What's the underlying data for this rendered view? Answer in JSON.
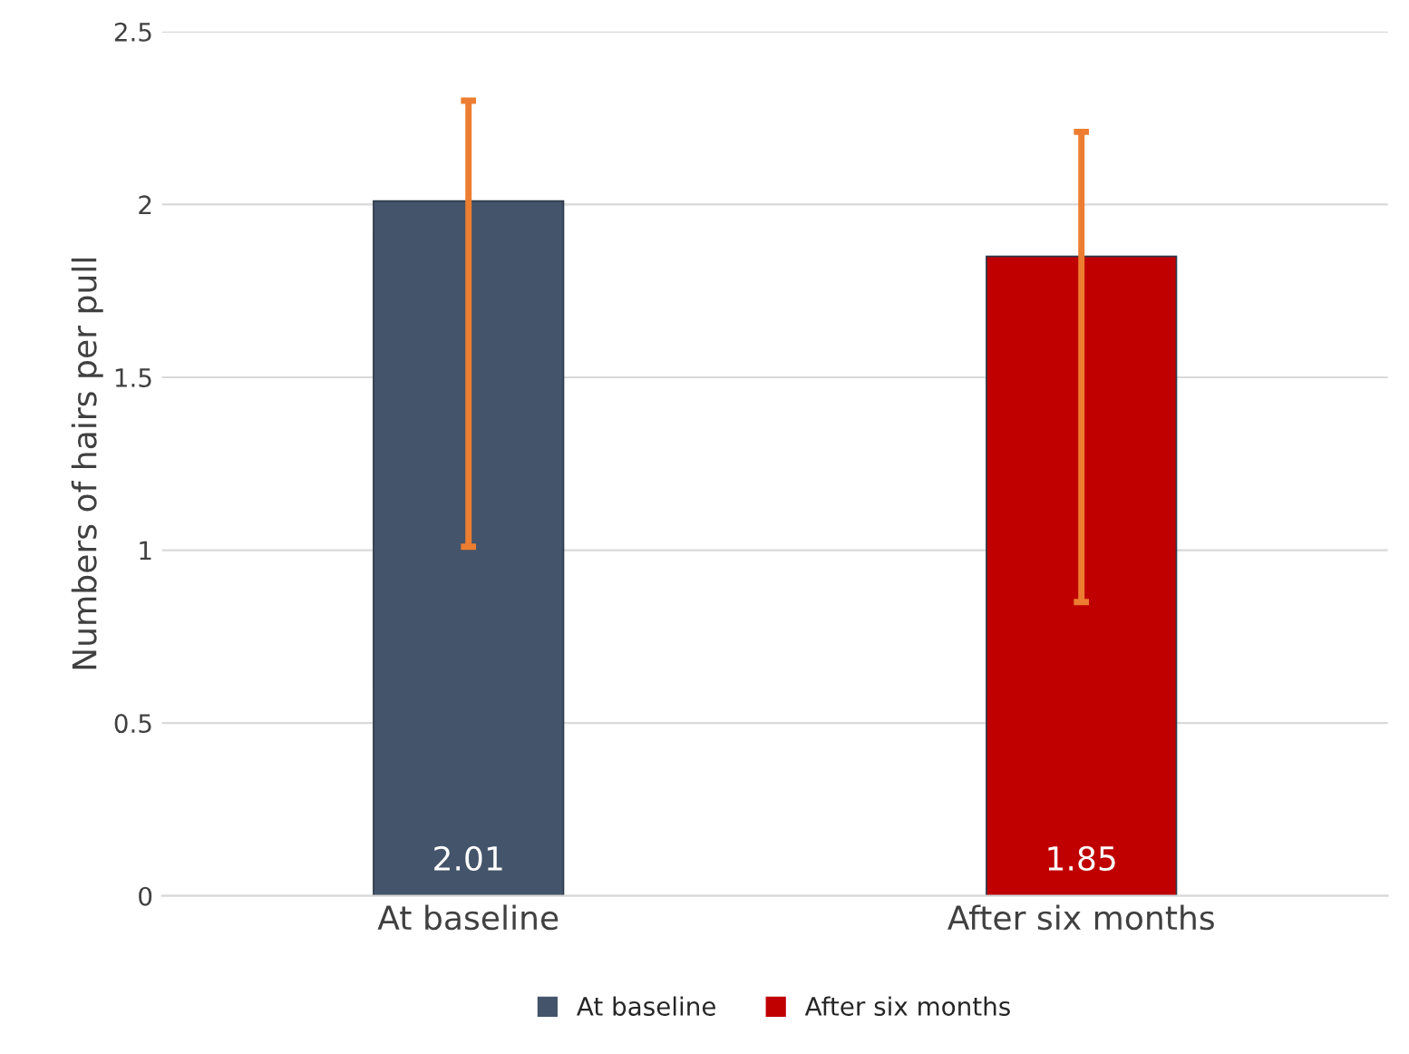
{
  "chart_data": {
    "type": "bar",
    "ylabel": "Numbers of hairs per pull",
    "categories": [
      "At baseline",
      "After six months"
    ],
    "series": [
      {
        "name": "At baseline",
        "color": "#44546a",
        "values": [
          2.01,
          null
        ],
        "errors": [
          [
            1.01,
            2.3
          ],
          null
        ],
        "value_labels": [
          "2.01",
          null
        ]
      },
      {
        "name": "After six months",
        "color": "#c00000",
        "values": [
          null,
          1.85
        ],
        "errors": [
          null,
          [
            0.85,
            2.21
          ]
        ],
        "value_labels": [
          null,
          "1.85"
        ]
      }
    ],
    "ylim": [
      0,
      2.5
    ],
    "yticks": [
      0,
      0.5,
      1,
      1.5,
      2,
      2.5
    ],
    "grid": "y",
    "legend": "bottom"
  }
}
